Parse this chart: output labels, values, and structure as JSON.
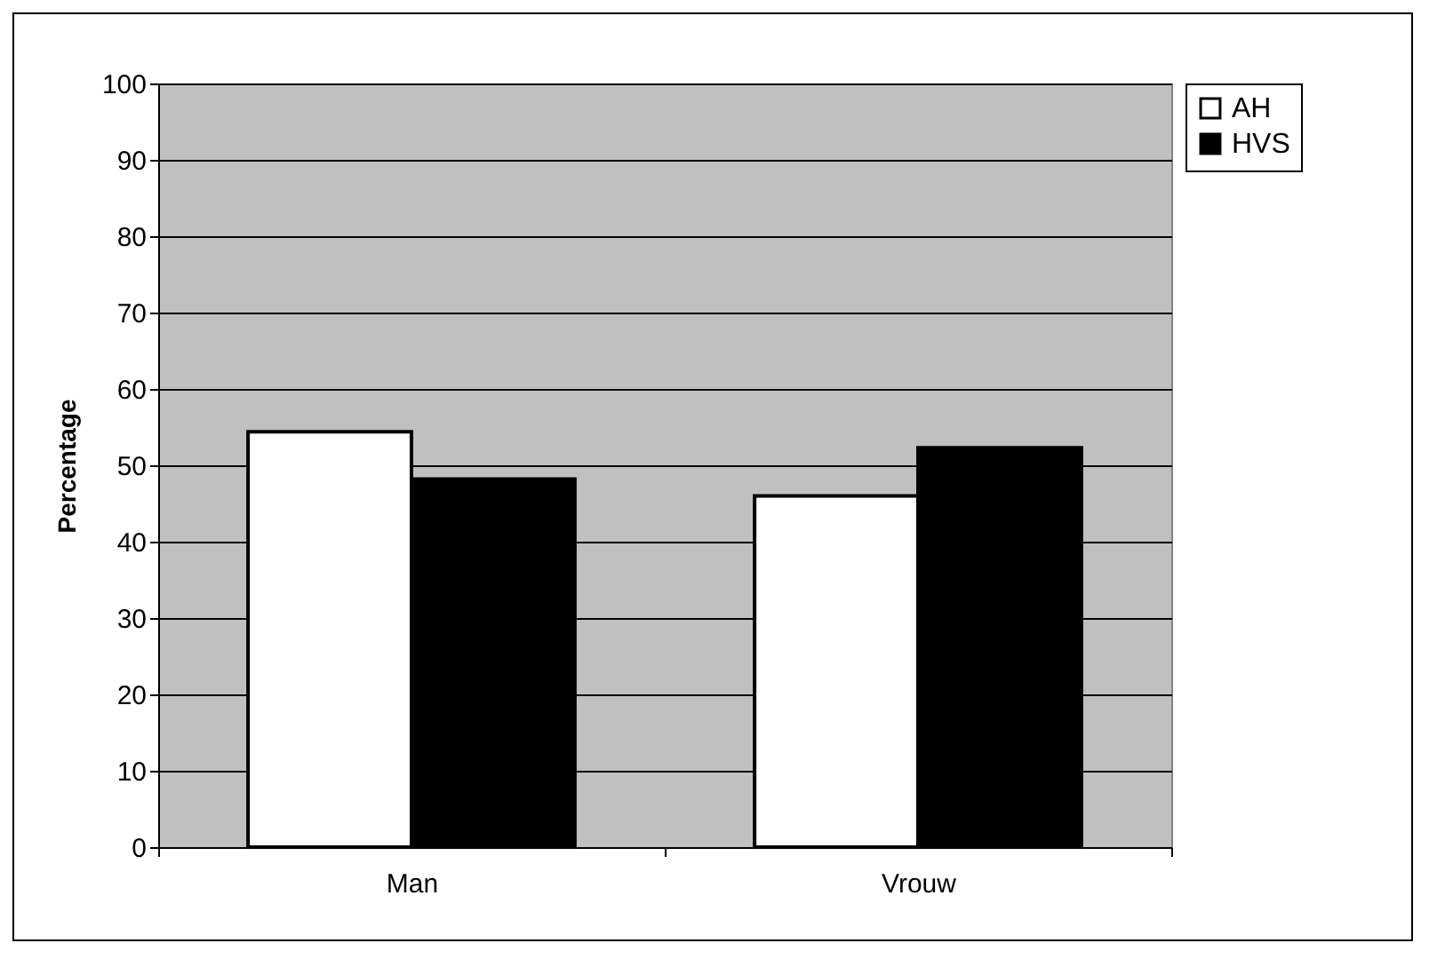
{
  "chart_data": {
    "type": "bar",
    "ylabel": "Percentage",
    "categories": [
      "Man",
      "Vrouw"
    ],
    "series": [
      {
        "name": "AH",
        "color": "#ffffff",
        "values": [
          54.4,
          46
        ]
      },
      {
        "name": "HVS",
        "color": "#000000",
        "values": [
          48.2,
          52.3
        ]
      }
    ],
    "ylim": [
      0,
      100
    ],
    "yticks": [
      0,
      10,
      20,
      30,
      40,
      50,
      60,
      70,
      80,
      90,
      100
    ],
    "grid": "y",
    "legend": "right"
  }
}
